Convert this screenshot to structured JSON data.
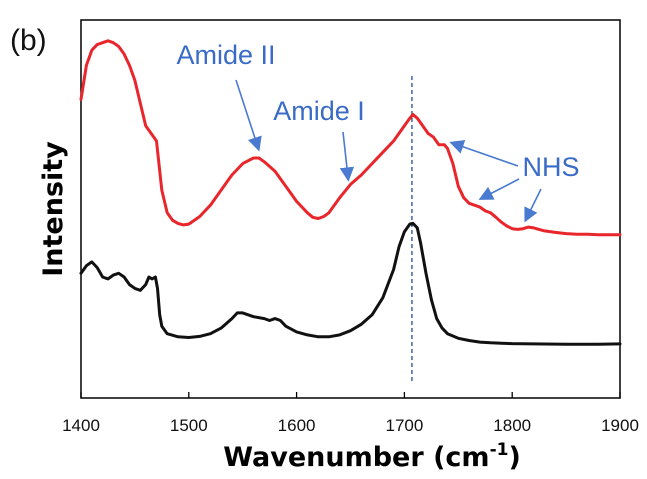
{
  "chart_data": {
    "type": "line",
    "panel_label": "(b)",
    "xlabel": "Wavenumber (cm",
    "xlabel_superscript": "-1",
    "xlabel_close": ")",
    "ylabel": "Intensity",
    "xlim": [
      1400,
      1900
    ],
    "ylim": [
      0,
      1
    ],
    "x_ticks": [
      1400,
      1500,
      1600,
      1700,
      1800,
      1900
    ],
    "y_ticks_shown": false,
    "grid": false,
    "legend": "none",
    "reference_line": {
      "x": 1707,
      "style": "dashed",
      "color": "#2e5aa8"
    },
    "series": [
      {
        "color": "#e8262b",
        "points": [
          [
            1400,
            0.79
          ],
          [
            1405,
            0.88
          ],
          [
            1410,
            0.92
          ],
          [
            1415,
            0.935
          ],
          [
            1420,
            0.94
          ],
          [
            1425,
            0.945
          ],
          [
            1430,
            0.94
          ],
          [
            1435,
            0.93
          ],
          [
            1440,
            0.91
          ],
          [
            1445,
            0.88
          ],
          [
            1450,
            0.84
          ],
          [
            1455,
            0.78
          ],
          [
            1460,
            0.72
          ],
          [
            1465,
            0.7
          ],
          [
            1470,
            0.68
          ],
          [
            1475,
            0.55
          ],
          [
            1480,
            0.49
          ],
          [
            1485,
            0.47
          ],
          [
            1490,
            0.462
          ],
          [
            1495,
            0.458
          ],
          [
            1500,
            0.46
          ],
          [
            1510,
            0.48
          ],
          [
            1520,
            0.51
          ],
          [
            1530,
            0.55
          ],
          [
            1540,
            0.59
          ],
          [
            1550,
            0.62
          ],
          [
            1560,
            0.635
          ],
          [
            1565,
            0.635
          ],
          [
            1570,
            0.625
          ],
          [
            1580,
            0.6
          ],
          [
            1590,
            0.56
          ],
          [
            1600,
            0.52
          ],
          [
            1610,
            0.49
          ],
          [
            1615,
            0.478
          ],
          [
            1620,
            0.475
          ],
          [
            1625,
            0.48
          ],
          [
            1630,
            0.49
          ],
          [
            1640,
            0.53
          ],
          [
            1650,
            0.565
          ],
          [
            1660,
            0.59
          ],
          [
            1670,
            0.62
          ],
          [
            1680,
            0.65
          ],
          [
            1690,
            0.68
          ],
          [
            1695,
            0.7
          ],
          [
            1700,
            0.72
          ],
          [
            1705,
            0.74
          ],
          [
            1708,
            0.75
          ],
          [
            1712,
            0.74
          ],
          [
            1717,
            0.72
          ],
          [
            1722,
            0.7
          ],
          [
            1727,
            0.69
          ],
          [
            1732,
            0.67
          ],
          [
            1737,
            0.67
          ],
          [
            1740,
            0.66
          ],
          [
            1745,
            0.62
          ],
          [
            1750,
            0.56
          ],
          [
            1755,
            0.53
          ],
          [
            1760,
            0.515
          ],
          [
            1765,
            0.51
          ],
          [
            1770,
            0.505
          ],
          [
            1775,
            0.495
          ],
          [
            1780,
            0.49
          ],
          [
            1785,
            0.478
          ],
          [
            1790,
            0.465
          ],
          [
            1795,
            0.455
          ],
          [
            1800,
            0.448
          ],
          [
            1805,
            0.446
          ],
          [
            1810,
            0.448
          ],
          [
            1815,
            0.452
          ],
          [
            1820,
            0.45
          ],
          [
            1825,
            0.446
          ],
          [
            1830,
            0.442
          ],
          [
            1840,
            0.438
          ],
          [
            1850,
            0.435
          ],
          [
            1860,
            0.433
          ],
          [
            1870,
            0.433
          ],
          [
            1880,
            0.432
          ],
          [
            1890,
            0.432
          ],
          [
            1900,
            0.432
          ]
        ]
      },
      {
        "color": "#111111",
        "points": [
          [
            1400,
            0.33
          ],
          [
            1405,
            0.35
          ],
          [
            1410,
            0.36
          ],
          [
            1415,
            0.345
          ],
          [
            1420,
            0.32
          ],
          [
            1425,
            0.315
          ],
          [
            1430,
            0.325
          ],
          [
            1435,
            0.33
          ],
          [
            1440,
            0.32
          ],
          [
            1445,
            0.3
          ],
          [
            1450,
            0.29
          ],
          [
            1455,
            0.285
          ],
          [
            1460,
            0.3
          ],
          [
            1463,
            0.32
          ],
          [
            1466,
            0.315
          ],
          [
            1469,
            0.32
          ],
          [
            1471,
            0.29
          ],
          [
            1473,
            0.22
          ],
          [
            1475,
            0.19
          ],
          [
            1480,
            0.17
          ],
          [
            1490,
            0.162
          ],
          [
            1500,
            0.16
          ],
          [
            1510,
            0.163
          ],
          [
            1520,
            0.17
          ],
          [
            1530,
            0.185
          ],
          [
            1540,
            0.21
          ],
          [
            1545,
            0.225
          ],
          [
            1550,
            0.225
          ],
          [
            1555,
            0.22
          ],
          [
            1560,
            0.215
          ],
          [
            1570,
            0.21
          ],
          [
            1575,
            0.205
          ],
          [
            1580,
            0.21
          ],
          [
            1585,
            0.205
          ],
          [
            1590,
            0.19
          ],
          [
            1600,
            0.175
          ],
          [
            1610,
            0.167
          ],
          [
            1620,
            0.162
          ],
          [
            1630,
            0.162
          ],
          [
            1640,
            0.167
          ],
          [
            1650,
            0.178
          ],
          [
            1660,
            0.195
          ],
          [
            1670,
            0.22
          ],
          [
            1680,
            0.265
          ],
          [
            1690,
            0.34
          ],
          [
            1695,
            0.4
          ],
          [
            1700,
            0.44
          ],
          [
            1705,
            0.46
          ],
          [
            1708,
            0.462
          ],
          [
            1712,
            0.45
          ],
          [
            1715,
            0.41
          ],
          [
            1720,
            0.33
          ],
          [
            1725,
            0.26
          ],
          [
            1730,
            0.21
          ],
          [
            1735,
            0.185
          ],
          [
            1740,
            0.17
          ],
          [
            1750,
            0.158
          ],
          [
            1760,
            0.152
          ],
          [
            1770,
            0.148
          ],
          [
            1780,
            0.146
          ],
          [
            1790,
            0.145
          ],
          [
            1800,
            0.144
          ],
          [
            1820,
            0.143
          ],
          [
            1850,
            0.142
          ],
          [
            1880,
            0.142
          ],
          [
            1900,
            0.143
          ]
        ]
      }
    ],
    "annotations": [
      {
        "text": "Amide II",
        "color": "#3a6cc7",
        "points_to": [
          [
            1565,
            0.64
          ]
        ]
      },
      {
        "text": "Amide I",
        "color": "#3a6cc7",
        "points_to": [
          [
            1648,
            0.56
          ]
        ]
      },
      {
        "text": "NHS",
        "color": "#3a6cc7",
        "points_to": [
          [
            1743,
            0.66
          ],
          [
            1770,
            0.51
          ],
          [
            1812,
            0.452
          ]
        ]
      }
    ]
  }
}
